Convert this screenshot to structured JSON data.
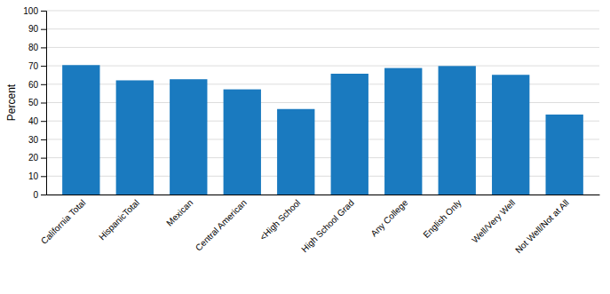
{
  "chart_data": {
    "type": "bar",
    "categories": [
      "California Total",
      "HispanicTotal",
      "Mexican",
      "Central American",
      "<High School",
      "High School Grad",
      "Any College",
      "English Only",
      "Well/Very Well",
      "Not Well/Not at All"
    ],
    "values": [
      70.4,
      62.1,
      62.7,
      57.2,
      46.5,
      65.7,
      68.8,
      69.9,
      65.1,
      43.5
    ],
    "color": "#1a7abf",
    "ylabel": "Percent",
    "ylim": [
      0,
      100
    ],
    "yticks": [
      0,
      10,
      20,
      30,
      40,
      50,
      60,
      70,
      80,
      90,
      100
    ],
    "grid": true
  }
}
